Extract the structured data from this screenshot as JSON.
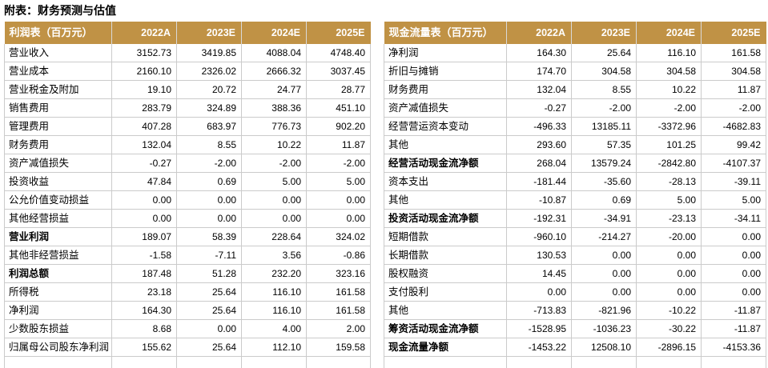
{
  "title": "附表：财务预测与估值",
  "colors": {
    "header_bg": "#C09245",
    "header_text": "#FFFFFF",
    "grid_border": "#CBCBCB",
    "body_text": "#000000"
  },
  "tables": [
    {
      "id": "income-statement",
      "columns": [
        "利润表（百万元）",
        "2022A",
        "2023E",
        "2024E",
        "2025E"
      ],
      "rows": [
        {
          "label": "营业收入",
          "values": [
            "3152.73",
            "3419.85",
            "4088.04",
            "4748.40"
          ],
          "bold": false
        },
        {
          "label": "营业成本",
          "values": [
            "2160.10",
            "2326.02",
            "2666.32",
            "3037.45"
          ],
          "bold": false
        },
        {
          "label": "营业税金及附加",
          "values": [
            "19.10",
            "20.72",
            "24.77",
            "28.77"
          ],
          "bold": false
        },
        {
          "label": "销售费用",
          "values": [
            "283.79",
            "324.89",
            "388.36",
            "451.10"
          ],
          "bold": false
        },
        {
          "label": "管理费用",
          "values": [
            "407.28",
            "683.97",
            "776.73",
            "902.20"
          ],
          "bold": false
        },
        {
          "label": "财务费用",
          "values": [
            "132.04",
            "8.55",
            "10.22",
            "11.87"
          ],
          "bold": false
        },
        {
          "label": "资产减值损失",
          "values": [
            "-0.27",
            "-2.00",
            "-2.00",
            "-2.00"
          ],
          "bold": false
        },
        {
          "label": "投资收益",
          "values": [
            "47.84",
            "0.69",
            "5.00",
            "5.00"
          ],
          "bold": false
        },
        {
          "label": "公允价值变动损益",
          "values": [
            "0.00",
            "0.00",
            "0.00",
            "0.00"
          ],
          "bold": false
        },
        {
          "label": "其他经营损益",
          "values": [
            "0.00",
            "0.00",
            "0.00",
            "0.00"
          ],
          "bold": false
        },
        {
          "label": "营业利润",
          "values": [
            "189.07",
            "58.39",
            "228.64",
            "324.02"
          ],
          "bold": true
        },
        {
          "label": "其他非经营损益",
          "values": [
            "-1.58",
            "-7.11",
            "3.56",
            "-0.86"
          ],
          "bold": false
        },
        {
          "label": "利润总额",
          "values": [
            "187.48",
            "51.28",
            "232.20",
            "323.16"
          ],
          "bold": true
        },
        {
          "label": "所得税",
          "values": [
            "23.18",
            "25.64",
            "116.10",
            "161.58"
          ],
          "bold": false
        },
        {
          "label": "净利润",
          "values": [
            "164.30",
            "25.64",
            "116.10",
            "161.58"
          ],
          "bold": false
        },
        {
          "label": "少数股东损益",
          "values": [
            "8.68",
            "0.00",
            "4.00",
            "2.00"
          ],
          "bold": false
        },
        {
          "label": "归属母公司股东净利润",
          "values": [
            "155.62",
            "25.64",
            "112.10",
            "159.58"
          ],
          "bold": false
        }
      ]
    },
    {
      "id": "cash-flow-statement",
      "columns": [
        "现金流量表（百万元）",
        "2022A",
        "2023E",
        "2024E",
        "2025E"
      ],
      "rows": [
        {
          "label": "净利润",
          "values": [
            "164.30",
            "25.64",
            "116.10",
            "161.58"
          ],
          "bold": false
        },
        {
          "label": "折旧与摊销",
          "values": [
            "174.70",
            "304.58",
            "304.58",
            "304.58"
          ],
          "bold": false
        },
        {
          "label": "财务费用",
          "values": [
            "132.04",
            "8.55",
            "10.22",
            "11.87"
          ],
          "bold": false
        },
        {
          "label": "资产减值损失",
          "values": [
            "-0.27",
            "-2.00",
            "-2.00",
            "-2.00"
          ],
          "bold": false
        },
        {
          "label": "经营营运资本变动",
          "values": [
            "-496.33",
            "13185.11",
            "-3372.96",
            "-4682.83"
          ],
          "bold": false
        },
        {
          "label": "其他",
          "values": [
            "293.60",
            "57.35",
            "101.25",
            "99.42"
          ],
          "bold": false
        },
        {
          "label": "经营活动现金流净额",
          "values": [
            "268.04",
            "13579.24",
            "-2842.80",
            "-4107.37"
          ],
          "bold": true
        },
        {
          "label": "资本支出",
          "values": [
            "-181.44",
            "-35.60",
            "-28.13",
            "-39.11"
          ],
          "bold": false
        },
        {
          "label": "其他",
          "values": [
            "-10.87",
            "0.69",
            "5.00",
            "5.00"
          ],
          "bold": false
        },
        {
          "label": "投资活动现金流净额",
          "values": [
            "-192.31",
            "-34.91",
            "-23.13",
            "-34.11"
          ],
          "bold": true
        },
        {
          "label": "短期借款",
          "values": [
            "-960.10",
            "-214.27",
            "-20.00",
            "0.00"
          ],
          "bold": false
        },
        {
          "label": "长期借款",
          "values": [
            "130.53",
            "0.00",
            "0.00",
            "0.00"
          ],
          "bold": false
        },
        {
          "label": "股权融资",
          "values": [
            "14.45",
            "0.00",
            "0.00",
            "0.00"
          ],
          "bold": false
        },
        {
          "label": "支付股利",
          "values": [
            "0.00",
            "0.00",
            "0.00",
            "0.00"
          ],
          "bold": false
        },
        {
          "label": "其他",
          "values": [
            "-713.83",
            "-821.96",
            "-10.22",
            "-11.87"
          ],
          "bold": false
        },
        {
          "label": "筹资活动现金流净额",
          "values": [
            "-1528.95",
            "-1036.23",
            "-30.22",
            "-11.87"
          ],
          "bold": true
        },
        {
          "label": "现金流量净额",
          "values": [
            "-1453.22",
            "12508.10",
            "-2896.15",
            "-4153.36"
          ],
          "bold": true
        }
      ]
    }
  ]
}
